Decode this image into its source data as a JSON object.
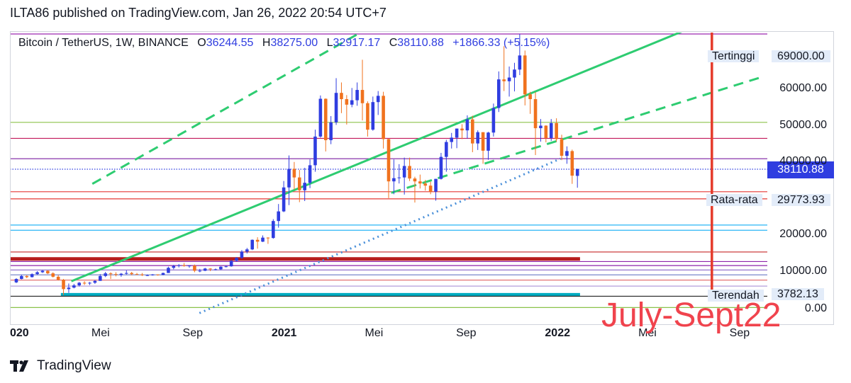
{
  "publisher_line": "ILTA86 published on TradingView.com, Jan 26, 2022 20:54 UTC+7",
  "header": {
    "symbol": "Bitcoin / TetherUS, 1W, BINANCE",
    "open_label": "O",
    "open": "36244.55",
    "high_label": "H",
    "high": "38275.00",
    "low_label": "L",
    "low": "32917.17",
    "close_label": "C",
    "close": "38110.88",
    "change": "+1866.33 (+5.15%)"
  },
  "annotations": {
    "high_label": "Tertinggi",
    "high_value": "69000.00",
    "avg_label": "Rata-rata",
    "avg_value": "29773.93",
    "low_label": "Terendah",
    "low_value": "3782.13",
    "last_price": "38110.88",
    "overlay_text": "July-Sept22"
  },
  "brand": "TradingView",
  "colors": {
    "bull": "#2f3de0",
    "bear": "#f0721e",
    "trend_green": "#2ecc71",
    "dotted_blue": "#4a90d9",
    "red_vertical": "#e53a2a",
    "accent": "#2f3de0"
  },
  "chart_data": {
    "type": "candlestick",
    "symbol": "Bitcoin / TetherUS",
    "interval": "1W",
    "exchange": "BINANCE",
    "y_ticks": [
      {
        "value": 0,
        "label": "0.00"
      },
      {
        "value": 10000,
        "label": "10000.00"
      },
      {
        "value": 20000,
        "label": "20000.00"
      },
      {
        "value": 40000,
        "label": "40000.00"
      },
      {
        "value": 50000,
        "label": "50000.00"
      },
      {
        "value": 60000,
        "label": "60000.00"
      }
    ],
    "x_ticks": [
      {
        "date": "2020-01-01",
        "label": "020",
        "bold": true
      },
      {
        "date": "2020-05-01",
        "label": "Mei",
        "bold": false
      },
      {
        "date": "2020-09-01",
        "label": "Sep",
        "bold": false
      },
      {
        "date": "2021-01-01",
        "label": "2021",
        "bold": true
      },
      {
        "date": "2021-05-01",
        "label": "Mei",
        "bold": false
      },
      {
        "date": "2021-09-01",
        "label": "Sep",
        "bold": false
      },
      {
        "date": "2022-01-01",
        "label": "2022",
        "bold": true
      },
      {
        "date": "2022-05-01",
        "label": "Mei",
        "bold": false
      },
      {
        "date": "2022-09-01",
        "label": "Sep",
        "bold": false
      }
    ],
    "x_range": [
      "2020-01-01",
      "2022-10-08"
    ],
    "candles": [
      {
        "date": "2020-01-06",
        "o": 7200,
        "h": 8300,
        "l": 7000,
        "c": 8100
      },
      {
        "date": "2020-01-13",
        "o": 8100,
        "h": 9200,
        "l": 8000,
        "c": 8900
      },
      {
        "date": "2020-01-20",
        "o": 8900,
        "h": 9100,
        "l": 8300,
        "c": 8600
      },
      {
        "date": "2020-01-27",
        "o": 8600,
        "h": 9600,
        "l": 8500,
        "c": 9400
      },
      {
        "date": "2020-02-03",
        "o": 9400,
        "h": 10200,
        "l": 9200,
        "c": 9900
      },
      {
        "date": "2020-02-10",
        "o": 9900,
        "h": 10500,
        "l": 9700,
        "c": 10300
      },
      {
        "date": "2020-02-17",
        "o": 10300,
        "h": 10400,
        "l": 9400,
        "c": 9600
      },
      {
        "date": "2020-02-24",
        "o": 9600,
        "h": 9900,
        "l": 8500,
        "c": 8700
      },
      {
        "date": "2020-03-02",
        "o": 8700,
        "h": 9200,
        "l": 7700,
        "c": 7900
      },
      {
        "date": "2020-03-09",
        "o": 7900,
        "h": 8100,
        "l": 3782,
        "c": 5400
      },
      {
        "date": "2020-03-16",
        "o": 5400,
        "h": 6900,
        "l": 4400,
        "c": 5800
      },
      {
        "date": "2020-03-23",
        "o": 5800,
        "h": 6800,
        "l": 5600,
        "c": 6400
      },
      {
        "date": "2020-03-30",
        "o": 6400,
        "h": 7300,
        "l": 6100,
        "c": 7100
      },
      {
        "date": "2020-04-06",
        "o": 7100,
        "h": 7500,
        "l": 6500,
        "c": 6900
      },
      {
        "date": "2020-04-13",
        "o": 6900,
        "h": 7300,
        "l": 6500,
        "c": 7100
      },
      {
        "date": "2020-04-20",
        "o": 7100,
        "h": 7800,
        "l": 6800,
        "c": 7600
      },
      {
        "date": "2020-04-27",
        "o": 7600,
        "h": 9400,
        "l": 7600,
        "c": 8900
      },
      {
        "date": "2020-05-04",
        "o": 8900,
        "h": 10000,
        "l": 8600,
        "c": 9600
      },
      {
        "date": "2020-05-11",
        "o": 9600,
        "h": 9900,
        "l": 8100,
        "c": 9400
      },
      {
        "date": "2020-05-18",
        "o": 9400,
        "h": 9900,
        "l": 8800,
        "c": 9200
      },
      {
        "date": "2020-05-25",
        "o": 9200,
        "h": 9700,
        "l": 8700,
        "c": 9500
      },
      {
        "date": "2020-06-01",
        "o": 9500,
        "h": 10400,
        "l": 9300,
        "c": 9700
      },
      {
        "date": "2020-06-08",
        "o": 9700,
        "h": 10000,
        "l": 9100,
        "c": 9400
      },
      {
        "date": "2020-06-15",
        "o": 9400,
        "h": 9700,
        "l": 9200,
        "c": 9300
      },
      {
        "date": "2020-06-22",
        "o": 9300,
        "h": 9700,
        "l": 8900,
        "c": 9100
      },
      {
        "date": "2020-06-29",
        "o": 9100,
        "h": 9300,
        "l": 8900,
        "c": 9100
      },
      {
        "date": "2020-07-06",
        "o": 9100,
        "h": 9400,
        "l": 9000,
        "c": 9300
      },
      {
        "date": "2020-07-13",
        "o": 9300,
        "h": 9300,
        "l": 9000,
        "c": 9200
      },
      {
        "date": "2020-07-20",
        "o": 9200,
        "h": 9800,
        "l": 9100,
        "c": 9700
      },
      {
        "date": "2020-07-27",
        "o": 9700,
        "h": 11400,
        "l": 9700,
        "c": 11100
      },
      {
        "date": "2020-08-03",
        "o": 11100,
        "h": 11900,
        "l": 10700,
        "c": 11600
      },
      {
        "date": "2020-08-10",
        "o": 11600,
        "h": 12100,
        "l": 11200,
        "c": 11800
      },
      {
        "date": "2020-08-17",
        "o": 11800,
        "h": 12400,
        "l": 11400,
        "c": 11600
      },
      {
        "date": "2020-08-24",
        "o": 11600,
        "h": 11800,
        "l": 11100,
        "c": 11700
      },
      {
        "date": "2020-08-31",
        "o": 11700,
        "h": 12000,
        "l": 9900,
        "c": 10300
      },
      {
        "date": "2020-09-07",
        "o": 10300,
        "h": 10800,
        "l": 9900,
        "c": 10300
      },
      {
        "date": "2020-09-14",
        "o": 10300,
        "h": 11100,
        "l": 10200,
        "c": 10900
      },
      {
        "date": "2020-09-21",
        "o": 10900,
        "h": 11000,
        "l": 10200,
        "c": 10700
      },
      {
        "date": "2020-09-28",
        "o": 10700,
        "h": 10900,
        "l": 10400,
        "c": 10700
      },
      {
        "date": "2020-10-05",
        "o": 10700,
        "h": 11500,
        "l": 10500,
        "c": 11400
      },
      {
        "date": "2020-10-12",
        "o": 11400,
        "h": 11700,
        "l": 11200,
        "c": 11500
      },
      {
        "date": "2020-10-19",
        "o": 11500,
        "h": 13200,
        "l": 11400,
        "c": 13000
      },
      {
        "date": "2020-10-26",
        "o": 13000,
        "h": 14000,
        "l": 12900,
        "c": 13800
      },
      {
        "date": "2020-11-02",
        "o": 13800,
        "h": 15900,
        "l": 13500,
        "c": 15500
      },
      {
        "date": "2020-11-09",
        "o": 15500,
        "h": 16500,
        "l": 15000,
        "c": 16100
      },
      {
        "date": "2020-11-16",
        "o": 16100,
        "h": 18800,
        "l": 15900,
        "c": 18700
      },
      {
        "date": "2020-11-23",
        "o": 18700,
        "h": 19400,
        "l": 16300,
        "c": 18200
      },
      {
        "date": "2020-11-30",
        "o": 18200,
        "h": 19900,
        "l": 18100,
        "c": 19300
      },
      {
        "date": "2020-12-07",
        "o": 19300,
        "h": 19400,
        "l": 17600,
        "c": 19200
      },
      {
        "date": "2020-12-14",
        "o": 19200,
        "h": 24300,
        "l": 19000,
        "c": 23800
      },
      {
        "date": "2020-12-21",
        "o": 23800,
        "h": 28400,
        "l": 22000,
        "c": 26400
      },
      {
        "date": "2020-12-28",
        "o": 26400,
        "h": 34800,
        "l": 26200,
        "c": 33000
      },
      {
        "date": "2021-01-04",
        "o": 33000,
        "h": 41900,
        "l": 28100,
        "c": 38200
      },
      {
        "date": "2021-01-11",
        "o": 38200,
        "h": 40100,
        "l": 32400,
        "c": 35800
      },
      {
        "date": "2021-01-18",
        "o": 35800,
        "h": 37900,
        "l": 28900,
        "c": 32200
      },
      {
        "date": "2021-01-25",
        "o": 32200,
        "h": 38500,
        "l": 29200,
        "c": 34300
      },
      {
        "date": "2021-02-01",
        "o": 34300,
        "h": 40800,
        "l": 32800,
        "c": 39200
      },
      {
        "date": "2021-02-08",
        "o": 39200,
        "h": 49000,
        "l": 37400,
        "c": 47100
      },
      {
        "date": "2021-02-15",
        "o": 47100,
        "h": 58300,
        "l": 46800,
        "c": 57400
      },
      {
        "date": "2021-02-22",
        "o": 57400,
        "h": 57500,
        "l": 43000,
        "c": 46100
      },
      {
        "date": "2021-03-01",
        "o": 46100,
        "h": 52700,
        "l": 45000,
        "c": 51000
      },
      {
        "date": "2021-03-08",
        "o": 51000,
        "h": 61800,
        "l": 50300,
        "c": 59000
      },
      {
        "date": "2021-03-15",
        "o": 59000,
        "h": 61100,
        "l": 53500,
        "c": 57300
      },
      {
        "date": "2021-03-22",
        "o": 57300,
        "h": 58400,
        "l": 50400,
        "c": 55800
      },
      {
        "date": "2021-03-29",
        "o": 55800,
        "h": 60200,
        "l": 55100,
        "c": 57000
      },
      {
        "date": "2021-04-05",
        "o": 57000,
        "h": 61100,
        "l": 55500,
        "c": 59800
      },
      {
        "date": "2021-04-12",
        "o": 59800,
        "h": 64800,
        "l": 51500,
        "c": 56200
      },
      {
        "date": "2021-04-19",
        "o": 56200,
        "h": 56700,
        "l": 47100,
        "c": 49000
      },
      {
        "date": "2021-04-26",
        "o": 49000,
        "h": 58000,
        "l": 48700,
        "c": 56500
      },
      {
        "date": "2021-05-03",
        "o": 56500,
        "h": 59500,
        "l": 53000,
        "c": 58200
      },
      {
        "date": "2021-05-10",
        "o": 58200,
        "h": 59300,
        "l": 43800,
        "c": 46400
      },
      {
        "date": "2021-05-17",
        "o": 46400,
        "h": 46600,
        "l": 30000,
        "c": 34700
      },
      {
        "date": "2021-05-24",
        "o": 34700,
        "h": 40800,
        "l": 31100,
        "c": 35600
      },
      {
        "date": "2021-05-31",
        "o": 35600,
        "h": 39500,
        "l": 34100,
        "c": 35800
      },
      {
        "date": "2021-06-07",
        "o": 35800,
        "h": 41300,
        "l": 31000,
        "c": 39000
      },
      {
        "date": "2021-06-14",
        "o": 39000,
        "h": 41300,
        "l": 34800,
        "c": 35500
      },
      {
        "date": "2021-06-21",
        "o": 35500,
        "h": 36000,
        "l": 28800,
        "c": 34700
      },
      {
        "date": "2021-06-28",
        "o": 34700,
        "h": 36600,
        "l": 32700,
        "c": 34100
      },
      {
        "date": "2021-07-05",
        "o": 34100,
        "h": 35100,
        "l": 32100,
        "c": 33500
      },
      {
        "date": "2021-07-12",
        "o": 33500,
        "h": 34600,
        "l": 31100,
        "c": 31800
      },
      {
        "date": "2021-07-19",
        "o": 31800,
        "h": 35400,
        "l": 29300,
        "c": 35400
      },
      {
        "date": "2021-07-26",
        "o": 35400,
        "h": 42600,
        "l": 35200,
        "c": 41500
      },
      {
        "date": "2021-08-02",
        "o": 41500,
        "h": 46200,
        "l": 37400,
        "c": 45600
      },
      {
        "date": "2021-08-09",
        "o": 45600,
        "h": 48100,
        "l": 43800,
        "c": 46800
      },
      {
        "date": "2021-08-16",
        "o": 46800,
        "h": 49300,
        "l": 43900,
        "c": 49300
      },
      {
        "date": "2021-08-23",
        "o": 49300,
        "h": 50500,
        "l": 46400,
        "c": 48800
      },
      {
        "date": "2021-08-30",
        "o": 48800,
        "h": 52900,
        "l": 46500,
        "c": 51800
      },
      {
        "date": "2021-09-06",
        "o": 51800,
        "h": 52800,
        "l": 42800,
        "c": 45200
      },
      {
        "date": "2021-09-13",
        "o": 45200,
        "h": 48800,
        "l": 43400,
        "c": 48300
      },
      {
        "date": "2021-09-20",
        "o": 48300,
        "h": 48300,
        "l": 39600,
        "c": 43200
      },
      {
        "date": "2021-09-27",
        "o": 43200,
        "h": 48400,
        "l": 40700,
        "c": 48200
      },
      {
        "date": "2021-10-04",
        "o": 48200,
        "h": 56100,
        "l": 47100,
        "c": 54900
      },
      {
        "date": "2021-10-11",
        "o": 54900,
        "h": 62900,
        "l": 53800,
        "c": 61600
      },
      {
        "date": "2021-10-18",
        "o": 61600,
        "h": 67000,
        "l": 59500,
        "c": 61300
      },
      {
        "date": "2021-10-25",
        "o": 61300,
        "h": 63700,
        "l": 58000,
        "c": 61900
      },
      {
        "date": "2021-11-01",
        "o": 61900,
        "h": 64300,
        "l": 59400,
        "c": 63200
      },
      {
        "date": "2021-11-08",
        "o": 63200,
        "h": 69000,
        "l": 62300,
        "c": 65500
      },
      {
        "date": "2021-11-15",
        "o": 65500,
        "h": 66300,
        "l": 55600,
        "c": 58600
      },
      {
        "date": "2021-11-22",
        "o": 58600,
        "h": 59300,
        "l": 53300,
        "c": 57300
      },
      {
        "date": "2021-11-29",
        "o": 57300,
        "h": 59200,
        "l": 42000,
        "c": 49400
      },
      {
        "date": "2021-12-06",
        "o": 49400,
        "h": 51900,
        "l": 45700,
        "c": 50100
      },
      {
        "date": "2021-12-13",
        "o": 50100,
        "h": 50200,
        "l": 45500,
        "c": 46700
      },
      {
        "date": "2021-12-20",
        "o": 46700,
        "h": 51900,
        "l": 45900,
        "c": 50800
      },
      {
        "date": "2021-12-27",
        "o": 50800,
        "h": 52100,
        "l": 45700,
        "c": 46400
      },
      {
        "date": "2022-01-03",
        "o": 46400,
        "h": 47600,
        "l": 40600,
        "c": 41800
      },
      {
        "date": "2022-01-10",
        "o": 41800,
        "h": 44400,
        "l": 39600,
        "c": 43100
      },
      {
        "date": "2022-01-17",
        "o": 43100,
        "h": 43500,
        "l": 34000,
        "c": 36300
      },
      {
        "date": "2022-01-24",
        "o": 36244.55,
        "h": 38275,
        "l": 32917.17,
        "c": 38110.88
      }
    ],
    "horizontal_levels": [
      {
        "value": 69000,
        "color": "#9c27b0",
        "end": "right"
      },
      {
        "value": 51000,
        "color": "#8bc34a",
        "end": "right"
      },
      {
        "value": 46600,
        "color": "#c2185b",
        "end": "right"
      },
      {
        "value": 41000,
        "color": "#7b1fa2",
        "end": "right"
      },
      {
        "value": 38110.88,
        "color": "#2f3de0",
        "end": "right",
        "dotted": true
      },
      {
        "value": 31800,
        "color": "#e53935",
        "end": "right"
      },
      {
        "value": 29800,
        "color": "#e53935",
        "end": "right"
      },
      {
        "value": 22700,
        "color": "#29b6f6",
        "end": "right"
      },
      {
        "value": 21300,
        "color": "#29b6f6",
        "end": "right"
      },
      {
        "value": 15400,
        "color": "#c62828",
        "end": "right"
      },
      {
        "value": 13500,
        "color": "#b71c1c",
        "end": "2022-01-31",
        "width": 5
      },
      {
        "value": 12800,
        "color": "#8e24aa",
        "end": "right"
      },
      {
        "value": 11700,
        "color": "#8e24aa",
        "end": "right"
      },
      {
        "value": 10500,
        "color": "#9575cd",
        "end": "right"
      },
      {
        "value": 9200,
        "color": "#7986cb",
        "end": "right"
      },
      {
        "value": 7800,
        "color": "#e57373",
        "end": "right"
      },
      {
        "value": 6200,
        "color": "#b39ddb",
        "end": "right"
      },
      {
        "value": 3900,
        "color": "#00acc1",
        "end": "2022-01-31",
        "width": 5,
        "start": "2020-03-09"
      },
      {
        "value": 3500,
        "color": "#212121",
        "end": "right"
      },
      {
        "value": 500,
        "color": "#8bc34a",
        "end": "right"
      }
    ],
    "trend_lines": [
      {
        "style": "solid",
        "color": "#2ecc71",
        "from": {
          "date": "2020-03-23",
          "value": 7500
        },
        "to": {
          "date": "2022-10-08",
          "value": 79000
        }
      },
      {
        "style": "dashed",
        "color": "#2ecc71",
        "from": {
          "date": "2020-04-20",
          "value": 34000
        },
        "to": {
          "date": "2021-06-28",
          "value": 78000
        }
      },
      {
        "style": "dashed",
        "color": "#2ecc71",
        "from": {
          "date": "2021-05-24",
          "value": 31500
        },
        "to": {
          "date": "2022-10-01",
          "value": 62000
        }
      },
      {
        "style": "dotted",
        "color": "#4a90d9",
        "from": {
          "date": "2020-09-10",
          "value": -1000
        },
        "to": {
          "date": "2022-01-05",
          "value": 41000
        }
      },
      {
        "style": "solid",
        "color": "#e53a2a",
        "from": {
          "date": "2022-07-26",
          "value": 3800
        },
        "to": {
          "date": "2022-07-26",
          "value": 80000
        }
      }
    ],
    "ylim": [
      0,
      75000
    ],
    "grid": false,
    "legend": "none"
  }
}
